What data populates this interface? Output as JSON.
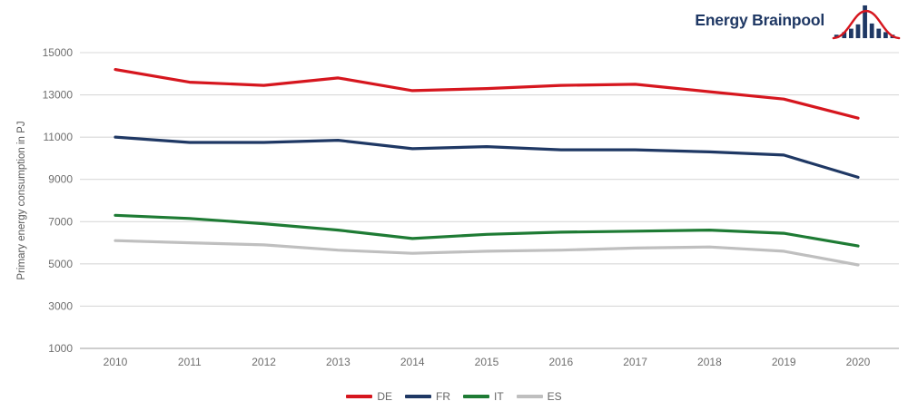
{
  "brand": {
    "name": "Energy Brainpool",
    "logo_icon": "bar-histogram-with-bell-curve",
    "text_color": "#1f3864",
    "bar_color": "#1f3864",
    "curve_color": "#d6161e"
  },
  "chart_data": {
    "type": "line",
    "title": "",
    "xlabel": "",
    "ylabel": "Primary energy consumption in PJ",
    "unit": "PJ",
    "x": [
      "2010",
      "2011",
      "2012",
      "2013",
      "2014",
      "2015",
      "2016",
      "2017",
      "2018",
      "2019",
      "2020"
    ],
    "series": [
      {
        "name": "DE",
        "color": "#d6161e",
        "values": [
          14200,
          13600,
          13450,
          13800,
          13200,
          13300,
          13450,
          13500,
          13150,
          12800,
          11900
        ]
      },
      {
        "name": "FR",
        "color": "#1f3864",
        "values": [
          11000,
          10750,
          10750,
          10850,
          10450,
          10550,
          10400,
          10400,
          10300,
          10150,
          9100
        ]
      },
      {
        "name": "IT",
        "color": "#1e7b34",
        "values": [
          7300,
          7150,
          6900,
          6600,
          6200,
          6400,
          6500,
          6550,
          6600,
          6450,
          5850
        ]
      },
      {
        "name": "ES",
        "color": "#bfbfbf",
        "values": [
          6100,
          6000,
          5900,
          5650,
          5500,
          5600,
          5650,
          5750,
          5800,
          5600,
          4950
        ]
      }
    ],
    "ylim": [
      1000,
      15000
    ],
    "yticks": [
      1000,
      3000,
      5000,
      7000,
      9000,
      11000,
      13000,
      15000
    ],
    "grid": "horizontal",
    "legend_position": "bottom-center"
  },
  "style": {
    "tick_label_color": "#6e6e6e",
    "axis_title_color": "#595959",
    "grid_color": "#d9d9d9",
    "axis_line_color": "#bdbdbd",
    "line_width": 3.2
  }
}
